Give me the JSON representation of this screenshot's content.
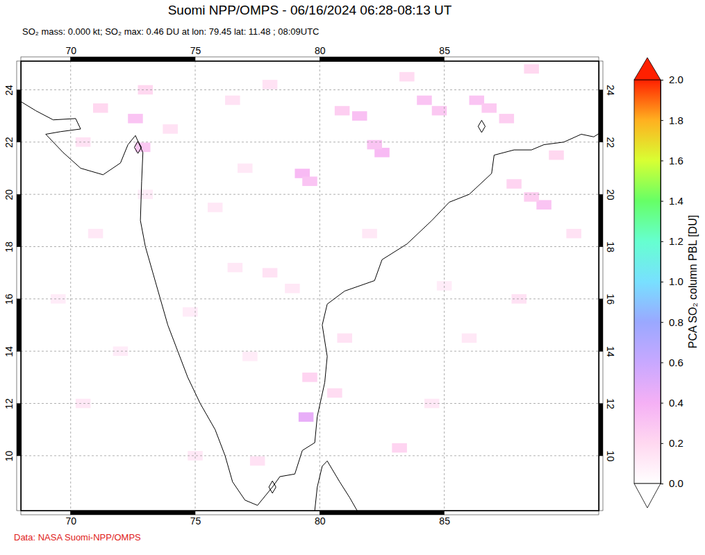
{
  "chart_data": {
    "type": "map",
    "title": "Suomi NPP/OMPS - 06/16/2024 06:28-08:13 UT",
    "subtitle": "SO₂ mass: 0.000 kt; SO₂ max: 0.46 DU at lon: 79.45 lat: 11.48 ; 08:09UTC",
    "footer": "Data: NASA Suomi-NPP/OMPS",
    "xlim": [
      68,
      91.2
    ],
    "ylim": [
      7.9,
      25.1
    ],
    "xticks": [
      70,
      75,
      80,
      85
    ],
    "yticks": [
      10,
      12,
      14,
      16,
      18,
      20,
      22,
      24
    ],
    "grid": true,
    "cells": {
      "lon": [
        79.45,
        79.3,
        79.6,
        82.5,
        82.2,
        81.6,
        80.9,
        84.2,
        84.8,
        86.3,
        86.8,
        87.5,
        89.0,
        88.5,
        87.8,
        72.6,
        72.9,
        71.2,
        70.5,
        76.5,
        77.0,
        74.0,
        75.8,
        73.0,
        76.6,
        78.0,
        78.9,
        81.0,
        79.6,
        80.6,
        83.2,
        84.5,
        86.0,
        88.0,
        89.5,
        90.2,
        71.0,
        69.5,
        72.0,
        70.5,
        75.0,
        77.5,
        73.0,
        78.0,
        83.5,
        88.5,
        85.0,
        82.0,
        74.8,
        77.2
      ],
      "lat": [
        11.48,
        20.8,
        20.5,
        21.6,
        21.9,
        23.0,
        23.2,
        23.6,
        23.2,
        23.6,
        23.3,
        22.9,
        19.6,
        19.9,
        20.4,
        22.9,
        21.8,
        23.3,
        22.0,
        23.6,
        21.0,
        22.5,
        19.5,
        20.0,
        17.2,
        17.0,
        16.4,
        14.5,
        13.0,
        12.4,
        10.3,
        12.0,
        14.5,
        16.0,
        21.5,
        18.5,
        18.5,
        16.0,
        14.0,
        12.0,
        10.0,
        9.8,
        24.0,
        24.2,
        24.5,
        24.8,
        16.5,
        18.5,
        15.5,
        13.8
      ],
      "values": [
        0.46,
        0.35,
        0.3,
        0.35,
        0.3,
        0.32,
        0.25,
        0.3,
        0.28,
        0.3,
        0.27,
        0.25,
        0.3,
        0.25,
        0.22,
        0.3,
        0.28,
        0.2,
        0.15,
        0.15,
        0.12,
        0.15,
        0.12,
        0.1,
        0.12,
        0.15,
        0.12,
        0.15,
        0.22,
        0.18,
        0.22,
        0.12,
        0.12,
        0.15,
        0.2,
        0.15,
        0.12,
        0.1,
        0.1,
        0.12,
        0.12,
        0.15,
        0.2,
        0.15,
        0.18,
        0.2,
        0.1,
        0.12,
        0.1,
        0.1
      ]
    },
    "coastlines": [
      {
        "lon": [
          68.0,
          68.6,
          69.3,
          70.2,
          70.4,
          69.6,
          69.0,
          69.7,
          70.4,
          71.3,
          72.0,
          72.3,
          72.6,
          72.9,
          72.85,
          72.8,
          73.0,
          73.3,
          73.6,
          73.9,
          74.3,
          74.7,
          75.2,
          75.8,
          76.2,
          76.5,
          77.0,
          77.5,
          78.1,
          78.4,
          79.0,
          79.3,
          79.8,
          79.9,
          80.2,
          80.3,
          80.1,
          80.3,
          81.0,
          82.2,
          82.5,
          83.5,
          84.5,
          85.2,
          86.0,
          86.9,
          87.0,
          87.8,
          88.5,
          89.0,
          89.8,
          90.5,
          91.0,
          91.5
        ],
        "lat": [
          23.55,
          23.2,
          22.85,
          22.9,
          22.5,
          22.4,
          22.3,
          21.6,
          21.0,
          20.75,
          21.2,
          21.9,
          22.25,
          21.6,
          20.5,
          19.0,
          18.0,
          17.0,
          16.0,
          15.0,
          14.0,
          13.0,
          12.0,
          11.0,
          10.0,
          9.0,
          8.3,
          8.1,
          8.8,
          9.2,
          9.3,
          10.2,
          10.5,
          11.5,
          12.8,
          13.8,
          15.0,
          15.8,
          16.3,
          16.7,
          17.5,
          18.1,
          19.0,
          19.7,
          20.0,
          20.8,
          21.5,
          21.7,
          21.7,
          21.9,
          22.0,
          22.3,
          22.2,
          22.5
        ]
      },
      {
        "lon": [
          79.8,
          79.9,
          80.1,
          80.3,
          80.8,
          81.2,
          81.5
        ],
        "lat": [
          7.9,
          8.8,
          9.6,
          9.8,
          9.0,
          8.4,
          7.9
        ]
      }
    ],
    "markers": {
      "lon": [
        72.7,
        86.5,
        78.1
      ],
      "lat": [
        21.8,
        22.6,
        8.8
      ],
      "marker": "diamond"
    },
    "colorbar": {
      "range": [
        0,
        2
      ],
      "ticks": [
        {
          "value": 0,
          "label": "0.0"
        },
        {
          "value": 0.2,
          "label": "0.2"
        },
        {
          "value": 0.4,
          "label": "0.4"
        },
        {
          "value": 0.6,
          "label": "0.6"
        },
        {
          "value": 0.8,
          "label": "0.8"
        },
        {
          "value": 1,
          "label": "1.0"
        },
        {
          "value": 1.2,
          "label": "1.2"
        },
        {
          "value": 1.4,
          "label": "1.4"
        },
        {
          "value": 1.6,
          "label": "1.6"
        },
        {
          "value": 1.8,
          "label": "1.8"
        },
        {
          "value": 2,
          "label": "2.0"
        }
      ],
      "label": "PCA SO₂ column PBL [DU]",
      "colors": [
        "#ffffff",
        "#ffd8f0",
        "#f5b0f5",
        "#c8a8ff",
        "#9aa8ff",
        "#78e0ff",
        "#66ffd0",
        "#66ff66",
        "#d8ff33",
        "#ffb020",
        "#ff2000"
      ]
    }
  }
}
